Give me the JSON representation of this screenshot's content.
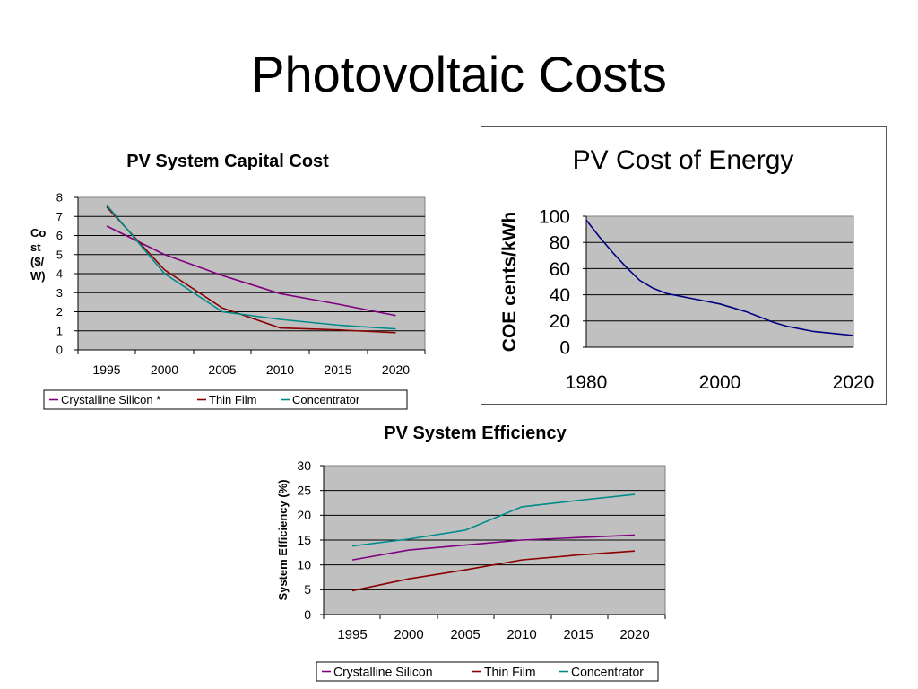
{
  "slide": {
    "title": "Photovoltaic Costs"
  },
  "chart_data": [
    {
      "type": "line",
      "title": "PV System Capital Cost",
      "xlabel": "",
      "ylabel": "Cost ($/W)",
      "ylabel_lines": [
        "Co",
        "st",
        "($/",
        "W)"
      ],
      "xlim": [
        1995,
        2020
      ],
      "ylim": [
        0,
        8
      ],
      "yticks": [
        0,
        1,
        2,
        3,
        4,
        5,
        6,
        7,
        8
      ],
      "xticks": [
        1995,
        2000,
        2005,
        2010,
        2015,
        2020
      ],
      "grid": true,
      "legend_position": "bottom",
      "series": [
        {
          "name": "Crystalline Silicon *",
          "color": "#800080",
          "x": [
            1995,
            2000,
            2005,
            2010,
            2015,
            2020
          ],
          "y": [
            6.5,
            5.0,
            3.9,
            2.95,
            2.4,
            1.8
          ]
        },
        {
          "name": "Thin Film",
          "color": "#8b0000",
          "x": [
            1995,
            2000,
            2005,
            2010,
            2015,
            2020
          ],
          "y": [
            7.5,
            4.2,
            2.2,
            1.15,
            1.05,
            0.9
          ]
        },
        {
          "name": "Concentrator",
          "color": "#008b8b",
          "x": [
            1995,
            2000,
            2005,
            2010,
            2015,
            2020
          ],
          "y": [
            7.6,
            4.0,
            2.0,
            1.6,
            1.3,
            1.1
          ]
        }
      ]
    },
    {
      "type": "line",
      "title": "PV Cost of Energy",
      "xlabel": "",
      "ylabel": "COE cents/kWh",
      "xlim": [
        1980,
        2020
      ],
      "ylim": [
        0,
        100
      ],
      "yticks": [
        0,
        20,
        40,
        60,
        80,
        100
      ],
      "xticks": [
        1980,
        2000,
        2020
      ],
      "grid": true,
      "series": [
        {
          "name": "",
          "color": "#000080",
          "x": [
            1980,
            1982,
            1984,
            1986,
            1988,
            1990,
            1992,
            1994,
            1996,
            1998,
            2000,
            2002,
            2004,
            2006,
            2008,
            2010,
            2012,
            2014,
            2016,
            2018,
            2020
          ],
          "y": [
            97,
            84,
            72,
            61,
            51,
            45,
            41,
            39,
            37,
            35,
            33,
            30,
            27,
            23,
            19,
            16,
            14,
            12,
            11,
            10,
            9
          ]
        }
      ]
    },
    {
      "type": "line",
      "title": "PV System Efficiency",
      "xlabel": "",
      "ylabel": "System Efficiency (%)",
      "xlim": [
        1995,
        2020
      ],
      "ylim": [
        0,
        30
      ],
      "yticks": [
        0,
        5,
        10,
        15,
        20,
        25,
        30
      ],
      "xticks": [
        1995,
        2000,
        2005,
        2010,
        2015,
        2020
      ],
      "grid": true,
      "legend_position": "bottom",
      "series": [
        {
          "name": "Crystalline Silicon",
          "color": "#800080",
          "x": [
            1995,
            2000,
            2005,
            2010,
            2015,
            2020
          ],
          "y": [
            11,
            13,
            14,
            15,
            15.5,
            16
          ]
        },
        {
          "name": "Thin Film",
          "color": "#8b0000",
          "x": [
            1995,
            2000,
            2005,
            2010,
            2015,
            2020
          ],
          "y": [
            4.8,
            7.2,
            9,
            11,
            12,
            12.8
          ]
        },
        {
          "name": "Concentrator",
          "color": "#008b8b",
          "x": [
            1995,
            2000,
            2005,
            2010,
            2015,
            2020
          ],
          "y": [
            13.8,
            15.2,
            17,
            21.7,
            23,
            24.2
          ]
        }
      ]
    }
  ]
}
